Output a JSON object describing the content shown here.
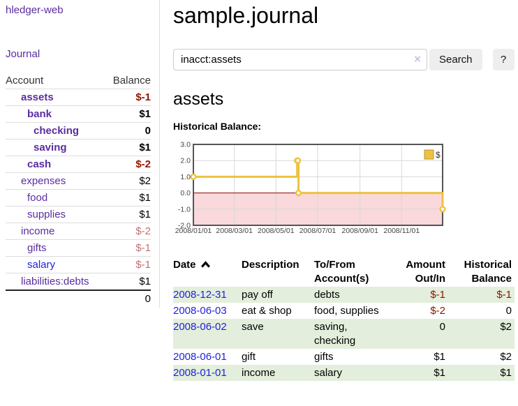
{
  "colors": {
    "link_purple": "#5a2ca0",
    "link_blue": "#2222dd",
    "negative_strong": "#8f1500",
    "negative_soft": "#bf7171",
    "stripe_green": "#e3eedc",
    "series_yellow": "#edc240",
    "chart_border": "#545454",
    "grid": "#d8d8d8",
    "axis_text": "#444444",
    "button_bg": "#eeeeee",
    "divider": "#dddddd"
  },
  "sidebar": {
    "brand": "hledger-web",
    "journal_label": "Journal",
    "accounts_table": {
      "headers": [
        "Account",
        "Balance"
      ],
      "rows": [
        {
          "account": "assets",
          "depth": 1,
          "balance": "$-1",
          "bold": true,
          "negative": true,
          "unvisited": false
        },
        {
          "account": "bank",
          "depth": 2,
          "balance": "$1",
          "bold": true,
          "negative": false,
          "unvisited": false
        },
        {
          "account": "checking",
          "depth": 3,
          "balance": "0",
          "bold": true,
          "negative": false,
          "unvisited": false
        },
        {
          "account": "saving",
          "depth": 3,
          "balance": "$1",
          "bold": true,
          "negative": false,
          "unvisited": false
        },
        {
          "account": "cash",
          "depth": 2,
          "balance": "$-2",
          "bold": true,
          "negative": true,
          "unvisited": false
        },
        {
          "account": "expenses",
          "depth": 1,
          "balance": "$2",
          "bold": false,
          "negative": false,
          "unvisited": false
        },
        {
          "account": "food",
          "depth": 2,
          "balance": "$1",
          "bold": false,
          "negative": false,
          "unvisited": false
        },
        {
          "account": "supplies",
          "depth": 2,
          "balance": "$1",
          "bold": false,
          "negative": false,
          "unvisited": false
        },
        {
          "account": "income",
          "depth": 1,
          "balance": "$-2",
          "bold": false,
          "negative": true,
          "unvisited": false
        },
        {
          "account": "gifts",
          "depth": 2,
          "balance": "$-1",
          "bold": false,
          "negative": true,
          "unvisited": false
        },
        {
          "account": "salary",
          "depth": 2,
          "balance": "$-1",
          "bold": false,
          "negative": true,
          "unvisited": true
        },
        {
          "account": "liabilities:debts",
          "depth": 1,
          "balance": "$1",
          "bold": false,
          "negative": false,
          "unvisited": false
        }
      ],
      "total": "0"
    }
  },
  "header": {
    "title": "sample.journal"
  },
  "search": {
    "value": "inacct:assets",
    "clear_icon": "×",
    "button_label": "Search",
    "help_label": "?"
  },
  "account_page": {
    "title": "assets",
    "chart_label": "Historical Balance:"
  },
  "chart_data": {
    "type": "line",
    "style": "step",
    "title": "Historical Balance",
    "legend": "$",
    "legend_position": "top-right",
    "grid": true,
    "ylim": [
      -2.0,
      3.0
    ],
    "xlim_days": [
      0,
      365
    ],
    "y_ticks": [
      {
        "label": "3.0",
        "value": 3
      },
      {
        "label": "2.0",
        "value": 2
      },
      {
        "label": "1.0",
        "value": 1
      },
      {
        "label": "0.0",
        "value": 0
      },
      {
        "label": "-1.0",
        "value": -1
      },
      {
        "label": "-2.0",
        "value": -2
      }
    ],
    "x_ticks": [
      {
        "label": "2008/01/01",
        "day": 0
      },
      {
        "label": "2008/03/01",
        "day": 60
      },
      {
        "label": "2008/05/01",
        "day": 121
      },
      {
        "label": "2008/07/01",
        "day": 182
      },
      {
        "label": "2008/09/01",
        "day": 244
      },
      {
        "label": "2008/11/01",
        "day": 305
      }
    ],
    "series": [
      {
        "name": "$",
        "color": "#edc240",
        "points": [
          {
            "date": "2008-01-01",
            "day": 0,
            "value": 1
          },
          {
            "date": "2008-06-01",
            "day": 152,
            "value": 2
          },
          {
            "date": "2008-06-02",
            "day": 153,
            "value": 2
          },
          {
            "date": "2008-06-03",
            "day": 154,
            "value": 0
          },
          {
            "date": "2008-12-31",
            "day": 365,
            "value": -1
          }
        ]
      }
    ],
    "negative_region_color": "#f9d9db",
    "zero_line_color": "#8b0000"
  },
  "register_table": {
    "headers": [
      "Date",
      "Description",
      "To/From Account(s)",
      "Amount Out/In",
      "Historical Balance"
    ],
    "sort": {
      "column": "Date",
      "direction": "ascending"
    },
    "rows": [
      {
        "date": "2008-12-31",
        "description": "pay off",
        "accounts": "debts",
        "amount": "$-1",
        "amount_negative": true,
        "balance": "$-1",
        "balance_negative": true
      },
      {
        "date": "2008-06-03",
        "description": "eat & shop",
        "accounts": "food, supplies",
        "amount": "$-2",
        "amount_negative": true,
        "balance": "0",
        "balance_negative": false
      },
      {
        "date": "2008-06-02",
        "description": "save",
        "accounts": "saving,\nchecking",
        "amount": "0",
        "amount_negative": false,
        "balance": "$2",
        "balance_negative": false
      },
      {
        "date": "2008-06-01",
        "description": "gift",
        "accounts": "gifts",
        "amount": "$1",
        "amount_negative": false,
        "balance": "$2",
        "balance_negative": false
      },
      {
        "date": "2008-01-01",
        "description": "income",
        "accounts": "salary",
        "amount": "$1",
        "amount_negative": false,
        "balance": "$1",
        "balance_negative": false
      }
    ]
  }
}
